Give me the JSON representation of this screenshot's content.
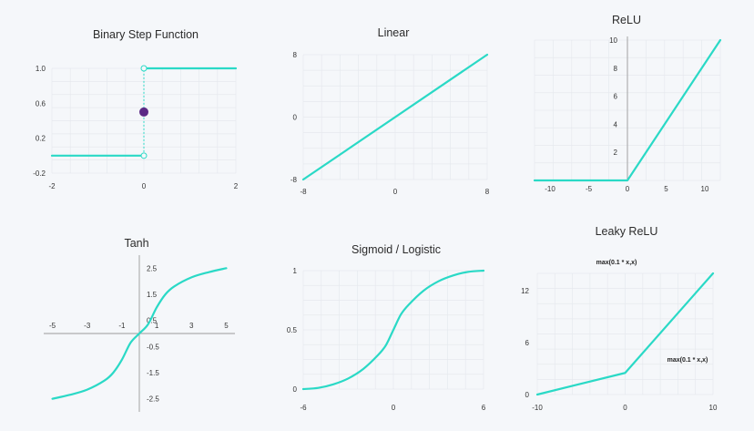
{
  "colors": {
    "curve": "#2ad9c6",
    "dot": "#5b2a86",
    "grid": "#e6e9ee",
    "axis": "#9a9a9a"
  },
  "chart_data": [
    {
      "type": "line",
      "title": "Binary Step Function",
      "xlim": [
        -2,
        2
      ],
      "ylim": [
        -0.2,
        1.0
      ],
      "xticks": [
        {
          "v": -2,
          "label": "-2"
        },
        {
          "v": 0,
          "label": "0"
        },
        {
          "v": 2,
          "label": "2"
        }
      ],
      "yticks": [
        {
          "v": -0.2,
          "label": "-0.2"
        },
        {
          "v": 0.2,
          "label": "0.2"
        },
        {
          "v": 0.6,
          "label": "0.6"
        },
        {
          "v": 1.0,
          "label": "1.0"
        }
      ],
      "series": [
        {
          "values": [
            [
              -2,
              0
            ],
            [
              0,
              0
            ]
          ]
        },
        {
          "values": [
            [
              0,
              1
            ],
            [
              2,
              1
            ]
          ]
        }
      ],
      "open_points": [
        [
          0,
          0
        ],
        [
          0,
          1
        ]
      ],
      "filled_point": [
        0,
        0.5
      ],
      "dashed_segment": [
        [
          0,
          0
        ],
        [
          0,
          1
        ]
      ],
      "grid": true
    },
    {
      "type": "line",
      "title": "Linear",
      "xlim": [
        -8,
        8
      ],
      "ylim": [
        -8,
        8
      ],
      "xticks": [
        {
          "v": -8,
          "label": "-8"
        },
        {
          "v": 0,
          "label": "0"
        },
        {
          "v": 8,
          "label": "8"
        }
      ],
      "yticks": [
        {
          "v": -8,
          "label": "-8"
        },
        {
          "v": 0,
          "label": "0"
        },
        {
          "v": 8,
          "label": "8"
        }
      ],
      "series": [
        {
          "values": [
            [
              -8,
              -8
            ],
            [
              8,
              8
            ]
          ]
        }
      ],
      "grid": true
    },
    {
      "type": "line",
      "title": "ReLU",
      "xlim": [
        -12,
        12
      ],
      "ylim": [
        0,
        10
      ],
      "xticks": [
        {
          "v": -10,
          "label": "-10"
        },
        {
          "v": -5,
          "label": "-5"
        },
        {
          "v": 0,
          "label": "0"
        },
        {
          "v": 5,
          "label": "5"
        },
        {
          "v": 10,
          "label": "10"
        }
      ],
      "yticks": [
        {
          "v": 2,
          "label": "2"
        },
        {
          "v": 4,
          "label": "4"
        },
        {
          "v": 6,
          "label": "6"
        },
        {
          "v": 8,
          "label": "8"
        },
        {
          "v": 10,
          "label": "10"
        }
      ],
      "series": [
        {
          "values": [
            [
              -12,
              0
            ],
            [
              0,
              0
            ],
            [
              12,
              10
            ]
          ]
        }
      ],
      "grid": true
    },
    {
      "type": "line",
      "title": "Tanh",
      "xlim": [
        -5.5,
        5.5
      ],
      "ylim": [
        -3,
        3
      ],
      "xticks": [
        {
          "v": -5,
          "label": "-5"
        },
        {
          "v": -3,
          "label": "-3"
        },
        {
          "v": -1,
          "label": "-1"
        },
        {
          "v": 1,
          "label": "1"
        },
        {
          "v": 3,
          "label": "3"
        },
        {
          "v": 5,
          "label": "5"
        }
      ],
      "yticks": [
        {
          "v": 2.5,
          "label": "2.5"
        },
        {
          "v": 1.5,
          "label": "1.5"
        },
        {
          "v": 0.5,
          "label": "0.5"
        },
        {
          "v": -0.5,
          "label": "-0.5"
        },
        {
          "v": -1.5,
          "label": "-1.5"
        },
        {
          "v": -2.5,
          "label": "-2.5"
        }
      ],
      "series": [
        {
          "values": [
            [
              -5,
              -2.5
            ],
            [
              -4,
              -2.35
            ],
            [
              -3,
              -2.15
            ],
            [
              -2,
              -1.8
            ],
            [
              -1.5,
              -1.5
            ],
            [
              -1,
              -1.0
            ],
            [
              -0.5,
              -0.35
            ],
            [
              0,
              0
            ],
            [
              0.5,
              0.35
            ],
            [
              1,
              1.0
            ],
            [
              1.5,
              1.5
            ],
            [
              2,
              1.8
            ],
            [
              3,
              2.15
            ],
            [
              4,
              2.35
            ],
            [
              5,
              2.5
            ]
          ]
        }
      ],
      "grid": false
    },
    {
      "type": "line",
      "title": "Sigmoid / Logistic",
      "xlim": [
        -6,
        6
      ],
      "ylim": [
        0,
        1
      ],
      "xticks": [
        {
          "v": -6,
          "label": "-6"
        },
        {
          "v": 0,
          "label": "0"
        },
        {
          "v": 6,
          "label": "6"
        }
      ],
      "yticks": [
        {
          "v": 0,
          "label": "0"
        },
        {
          "v": 0.5,
          "label": "0.5"
        },
        {
          "v": 1,
          "label": "1"
        }
      ],
      "series": [
        {
          "values": [
            [
              -6,
              0.0
            ],
            [
              -5,
              0.01
            ],
            [
              -4,
              0.04
            ],
            [
              -3,
              0.09
            ],
            [
              -2,
              0.17
            ],
            [
              -1,
              0.29
            ],
            [
              -0.5,
              0.37
            ],
            [
              0,
              0.5
            ],
            [
              0.5,
              0.63
            ],
            [
              1,
              0.71
            ],
            [
              2,
              0.83
            ],
            [
              3,
              0.91
            ],
            [
              4,
              0.96
            ],
            [
              5,
              0.99
            ],
            [
              6,
              1.0
            ]
          ]
        }
      ],
      "grid": true
    },
    {
      "type": "line",
      "title": "Leaky ReLU",
      "xlim": [
        -10,
        10
      ],
      "ylim": [
        0,
        14
      ],
      "xticks": [
        {
          "v": -10,
          "label": "-10"
        },
        {
          "v": 0,
          "label": "0"
        },
        {
          "v": 10,
          "label": "10"
        }
      ],
      "yticks": [
        {
          "v": 0,
          "label": "0"
        },
        {
          "v": 6,
          "label": "6"
        },
        {
          "v": 12,
          "label": "12"
        }
      ],
      "series": [
        {
          "values": [
            [
              -10,
              0
            ],
            [
              0,
              2.5
            ],
            [
              10,
              14
            ]
          ]
        }
      ],
      "annotations": [
        {
          "text": "max(0.1 * x,x)",
          "at": "top-left"
        },
        {
          "text": "max(0.1 * x,x)",
          "at": "right-middle"
        }
      ],
      "grid": true
    }
  ]
}
